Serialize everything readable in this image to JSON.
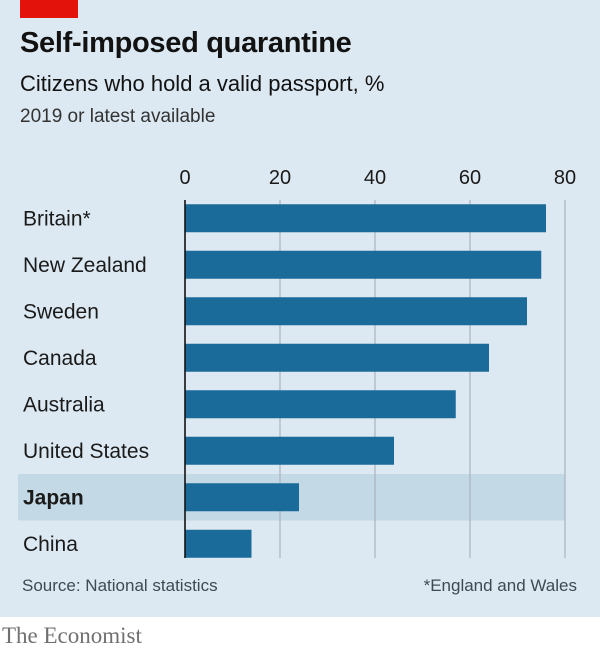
{
  "header": {
    "title": "Self-imposed quarantine",
    "subtitle": "Citizens who hold a valid passport, %",
    "note": "2019 or latest available"
  },
  "footer": {
    "source": "Source: National statistics",
    "footnote": "*England and Wales",
    "brand": "The Economist"
  },
  "colors": {
    "bar": "#1a6a9a",
    "highlight_band": "#c3d9e6",
    "gridline": "#a9b4bd",
    "axis": "#121212",
    "accent": "#e3120b"
  },
  "chart_data": {
    "type": "bar",
    "orientation": "horizontal",
    "title": "Self-imposed quarantine",
    "subtitle": "Citizens who hold a valid passport, %",
    "categories": [
      "Britain*",
      "New Zealand",
      "Sweden",
      "Canada",
      "Australia",
      "United States",
      "Japan",
      "China"
    ],
    "values": [
      76,
      75,
      72,
      64,
      57,
      44,
      24,
      14
    ],
    "highlight": "Japan",
    "xlim": [
      0,
      80
    ],
    "xticks": [
      0,
      20,
      40,
      60,
      80
    ],
    "grid": true,
    "xaxis_position": "top"
  }
}
